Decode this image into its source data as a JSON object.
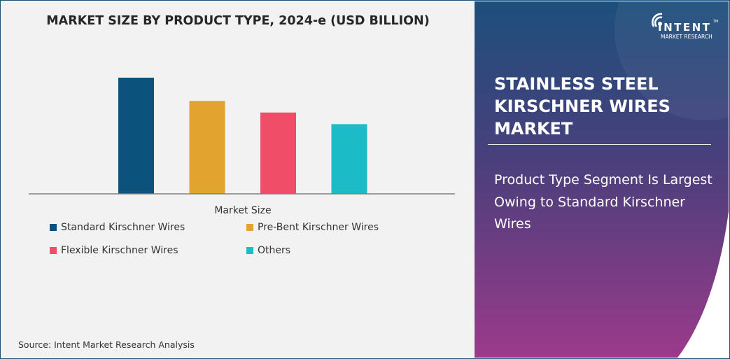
{
  "chart_data": {
    "type": "bar",
    "title": "MARKET SIZE BY PRODUCT TYPE, 2024-e (USD BILLION)",
    "xlabel": "Market Size",
    "ylabel": "",
    "categories": [
      "Market Size"
    ],
    "series": [
      {
        "name": "Standard Kirschner Wires",
        "values": [
          100
        ],
        "color": "#0b527c"
      },
      {
        "name": "Pre-Bent Kirschner Wires",
        "values": [
          80
        ],
        "color": "#e2a42e"
      },
      {
        "name": "Flexible Kirschner Wires",
        "values": [
          70
        ],
        "color": "#f04e68"
      },
      {
        "name": "Others",
        "values": [
          60
        ],
        "color": "#1bbcc7"
      }
    ],
    "ylim": [
      0,
      100
    ],
    "grid": false,
    "legend": "bottom"
  },
  "source": "Source: Intent Market Research Analysis",
  "panel": {
    "headline": "STAINLESS STEEL KIRSCHNER WIRES MARKET",
    "subtitle": "Product Type Segment Is Largest Owing to Standard Kirschner Wires",
    "logo_brand": "INTENT",
    "logo_tagline": "MARKET RESEARCH",
    "logo_tm": "TM",
    "gradient_top": "#1d4f7c",
    "gradient_bottom": "#9b3a8a"
  }
}
